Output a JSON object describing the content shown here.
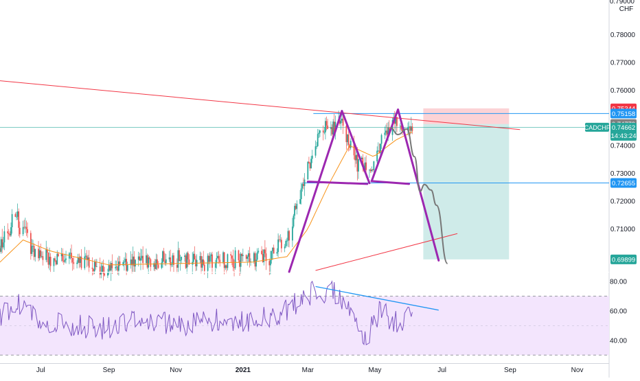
{
  "chart_data": {
    "type": "candlestick",
    "symbol": "CADCHF",
    "price_axis": {
      "currency_label": "CHF",
      "top_partial_label": "0.79000",
      "ticks": [
        0.78,
        0.77,
        0.76,
        0.74,
        0.73,
        0.72,
        0.71
      ],
      "tick_labels": [
        "0.78000",
        "0.77000",
        "0.76000",
        "0.74000",
        "0.73000",
        "0.72000",
        "0.71000"
      ],
      "range": [
        0.6945,
        0.7925
      ]
    },
    "time_axis": {
      "labels": [
        "Jul",
        "Sep",
        "Nov",
        "2021",
        "Mar",
        "May",
        "Jul",
        "Sep",
        "Nov"
      ],
      "range": [
        "2020-05-25",
        "2021-11-30"
      ]
    },
    "price_markers": [
      {
        "key": "stop",
        "label": "0.75344",
        "value": 0.75344,
        "color": "#f23645"
      },
      {
        "key": "resistance",
        "label": "0.75158",
        "value": 0.75158,
        "color": "#2196f3"
      },
      {
        "key": "entry",
        "label": "0.74779",
        "value": 0.74779,
        "color": "#808080"
      },
      {
        "key": "support",
        "label": "0.72655",
        "value": 0.72655,
        "color": "#2196f3"
      },
      {
        "key": "target",
        "label": "0.69899",
        "value": 0.69899,
        "color": "#26a69a"
      }
    ],
    "last_price": {
      "symbol": "CADCHF",
      "value": "0.74662",
      "countdown": "14:43:24",
      "color": "#26a69a"
    },
    "horizontal_levels": [
      0.75158,
      0.74662,
      0.72655
    ],
    "trendlines": [
      {
        "name": "descending-resistance",
        "color": "#f23645",
        "from": [
          "2020-04-20",
          0.7647
        ],
        "to": [
          "2021-09-10",
          0.7458
        ]
      },
      {
        "name": "ascending-support",
        "color": "#f23645",
        "from": [
          "2021-03-08",
          0.695
        ],
        "to": [
          "2021-07-15",
          0.7083
        ]
      }
    ],
    "pattern": {
      "name": "double top",
      "color": "#9c27b0",
      "segments": [
        [
          [
            "2021-02-12",
            0.6945
          ],
          [
            "2021-04-01",
            0.7525
          ]
        ],
        [
          [
            "2021-04-01",
            0.7525
          ],
          [
            "2021-04-26",
            0.7265
          ]
        ],
        [
          [
            "2021-03-01",
            0.727
          ],
          [
            "2021-04-24",
            0.7262
          ]
        ],
        [
          [
            "2021-04-28",
            0.7272
          ],
          [
            "2021-06-01",
            0.7262
          ]
        ],
        [
          [
            "2021-04-28",
            0.7272
          ],
          [
            "2021-05-22",
            0.753
          ]
        ],
        [
          [
            "2021-05-22",
            0.753
          ],
          [
            "2021-06-28",
            0.6986
          ]
        ]
      ]
    },
    "projection_path": {
      "color": "#777777",
      "points": [
        [
          "2021-05-15",
          0.7465
        ],
        [
          "2021-05-22",
          0.744
        ],
        [
          "2021-05-30",
          0.746
        ],
        [
          "2021-06-06",
          0.736
        ],
        [
          "2021-06-11",
          0.7235
        ],
        [
          "2021-06-15",
          0.726
        ],
        [
          "2021-06-21",
          0.724
        ],
        [
          "2021-06-26",
          0.7185
        ],
        [
          "2021-07-06",
          0.6975
        ]
      ]
    },
    "position_tool": {
      "start": "2021-06-14",
      "end": "2021-08-31",
      "entry": 0.74779,
      "stop": 0.75344,
      "target": 0.69899
    },
    "candles": {
      "approx_closes": [
        [
          "2020-05-25",
          0.703
        ],
        [
          "2020-06-08",
          0.7145
        ],
        [
          "2020-06-22",
          0.704
        ],
        [
          "2020-07-10",
          0.6985
        ],
        [
          "2020-08-01",
          0.699
        ],
        [
          "2020-09-01",
          0.6955
        ],
        [
          "2020-10-01",
          0.6975
        ],
        [
          "2020-11-01",
          0.699
        ],
        [
          "2020-12-01",
          0.698
        ],
        [
          "2021-01-01",
          0.6992
        ],
        [
          "2021-01-25",
          0.7
        ],
        [
          "2021-02-12",
          0.708
        ],
        [
          "2021-02-25",
          0.727
        ],
        [
          "2021-03-12",
          0.744
        ],
        [
          "2021-04-01",
          0.749
        ],
        [
          "2021-04-15",
          0.734
        ],
        [
          "2021-04-26",
          0.7295
        ],
        [
          "2021-05-10",
          0.745
        ],
        [
          "2021-05-20",
          0.748
        ],
        [
          "2021-06-04",
          0.7466
        ]
      ]
    },
    "moving_average": {
      "color": "#f7931a",
      "points": [
        [
          "2020-05-25",
          0.698
        ],
        [
          "2020-06-15",
          0.706
        ],
        [
          "2020-07-10",
          0.702
        ],
        [
          "2020-09-01",
          0.697
        ],
        [
          "2020-11-01",
          0.6975
        ],
        [
          "2021-01-10",
          0.698
        ],
        [
          "2021-02-10",
          0.7
        ],
        [
          "2021-03-01",
          0.71
        ],
        [
          "2021-03-20",
          0.726
        ],
        [
          "2021-04-08",
          0.74
        ],
        [
          "2021-04-30",
          0.736
        ],
        [
          "2021-05-20",
          0.742
        ],
        [
          "2021-06-04",
          0.745
        ]
      ]
    },
    "rsi": {
      "ticks": [
        80,
        60,
        40
      ],
      "tick_labels": [
        "80.00",
        "60.00",
        "40.00"
      ],
      "band": [
        30,
        70
      ],
      "range": [
        25,
        86
      ],
      "line_color": "#7e57c2",
      "band_color": "#f3e5fd",
      "divergence_line": {
        "color": "#2196f3",
        "from": [
          "2021-03-08",
          76.5
        ],
        "to": [
          "2021-06-28",
          60.5
        ]
      },
      "approx_values": [
        [
          "2020-05-25",
          55
        ],
        [
          "2020-06-10",
          65
        ],
        [
          "2020-07-01",
          52
        ],
        [
          "2020-08-01",
          50
        ],
        [
          "2020-09-01",
          48
        ],
        [
          "2020-10-01",
          56
        ],
        [
          "2020-11-01",
          50
        ],
        [
          "2020-12-01",
          54
        ],
        [
          "2021-01-01",
          52
        ],
        [
          "2021-02-01",
          57
        ],
        [
          "2021-02-20",
          66
        ],
        [
          "2021-03-08",
          74
        ],
        [
          "2021-03-25",
          72
        ],
        [
          "2021-04-12",
          57
        ],
        [
          "2021-04-22",
          40
        ],
        [
          "2021-05-06",
          60
        ],
        [
          "2021-05-20",
          52
        ],
        [
          "2021-06-04",
          56
        ]
      ]
    }
  }
}
